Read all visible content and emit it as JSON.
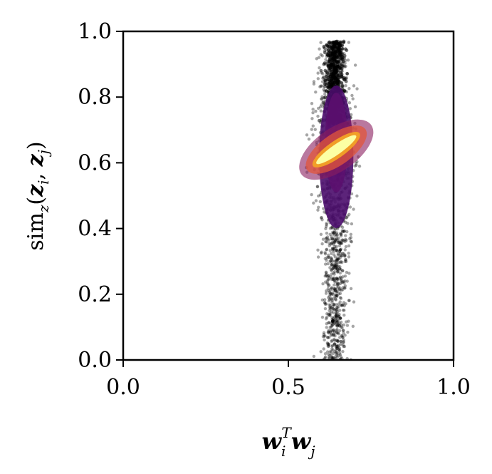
{
  "chart_data": {
    "type": "scatter",
    "title": "",
    "xlabel": "w_i^T w_j",
    "ylabel": "sim_z(z_i, z_j)",
    "xlim": [
      0.0,
      1.0
    ],
    "ylim": [
      0.0,
      1.0
    ],
    "xticks": [
      "0.0",
      "0.5",
      "1.0"
    ],
    "yticks": [
      "0.0",
      "0.2",
      "0.4",
      "0.6",
      "0.8",
      "1.0"
    ],
    "grid": false,
    "legend": "none",
    "colormap": "inferno (point density)",
    "colors": {
      "low_density": "#000000",
      "mid_density": "#4a0c6b",
      "high_density": "#e2563b",
      "peak_density": "#fcffa4"
    },
    "cloud": {
      "x_center": 0.64,
      "x_range": [
        0.59,
        0.69
      ],
      "y_range": [
        0.0,
        0.97
      ],
      "dense_core_x": [
        0.6,
        0.69
      ],
      "dense_core_y": [
        0.58,
        0.69
      ]
    }
  }
}
